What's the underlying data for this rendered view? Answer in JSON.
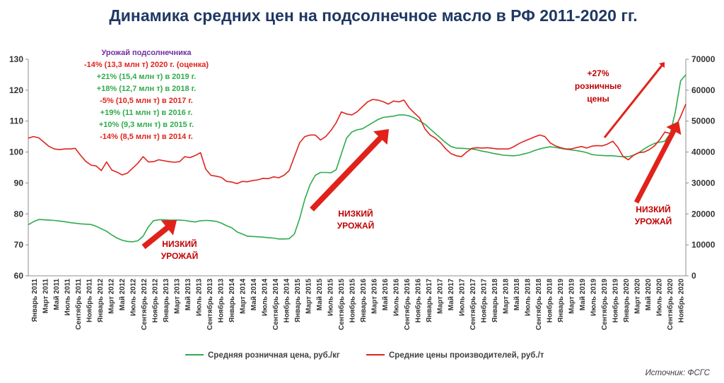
{
  "chart_data": {
    "type": "line",
    "title": "Динамика средних цен на подсолнечное масло в РФ 2011-2020 гг.",
    "source": "Источник: ФСГС",
    "y_left": {
      "min": 60,
      "max": 130,
      "ticks": [
        "130",
        "120",
        "110",
        "100",
        "90",
        "80",
        "70",
        "60"
      ]
    },
    "y_right": {
      "min": 0,
      "max": 70000,
      "ticks": [
        "70000",
        "60000",
        "50000",
        "40000",
        "30000",
        "20000",
        "10000",
        "0"
      ]
    },
    "x_labels": [
      "Январь 2011",
      "Март 2011",
      "Май 2011",
      "Июль 2011",
      "Сентябрь 2011",
      "Ноябрь 2011",
      "Январь 2012",
      "Март 2012",
      "Май 2012",
      "Июль 2012",
      "Сентябрь 2012",
      "Ноябрь 2012",
      "Январь 2013",
      "Март 2013",
      "Май 2013",
      "Июль 2013",
      "Сентябрь 2013",
      "Ноябрь 2013",
      "Январь 2014",
      "Март 2014",
      "Май 2014",
      "Июль 2014",
      "Сентябрь 2014",
      "Ноябрь 2014",
      "Январь 2015",
      "Март 2015",
      "Май 2015",
      "Июль 2015",
      "Сентябрь 2015",
      "Ноябрь 2015",
      "Январь 2016",
      "Март 2016",
      "Май 2016",
      "Июль 2016",
      "Сентябрь 2016",
      "Ноябрь 2016",
      "Январь 2017",
      "Март 2017",
      "Май 2017",
      "Июль 2017",
      "Сентябрь 2017",
      "Ноябрь 2017",
      "Январь 2018",
      "Март 2018",
      "Май 2018",
      "Июль 2018",
      "Сентябрь 2018",
      "Ноябрь 2018",
      "Январь 2019",
      "Март 2019",
      "Май 2019",
      "Июль 2019",
      "Сентябрь 2019",
      "Ноябрь 2019",
      "Январь 2020",
      "Март 2020",
      "Май 2020",
      "Июль 2020",
      "Сентябрь 2020",
      "Ноябрь 2020"
    ],
    "series": [
      {
        "name": "Средняя розничная цена, руб./кг",
        "axis": "left",
        "color": "#2eab4a",
        "values": [
          76.5,
          77.5,
          78.2,
          78.1,
          78.0,
          77.9,
          77.7,
          77.5,
          77.2,
          77.0,
          76.8,
          76.7,
          76.6,
          76.0,
          75.2,
          74.4,
          73.2,
          72.2,
          71.5,
          71.1,
          71.0,
          71.3,
          72.8,
          75.8,
          77.8,
          78.1,
          78.1,
          78.0,
          78.0,
          78.0,
          77.9,
          77.6,
          77.4,
          77.8,
          77.9,
          77.8,
          77.6,
          77.0,
          76.2,
          75.5,
          74.2,
          73.5,
          72.8,
          72.7,
          72.6,
          72.5,
          72.3,
          72.2,
          71.9,
          71.9,
          72.0,
          73.5,
          78.5,
          84.8,
          89.5,
          92.5,
          93.4,
          93.4,
          93.3,
          94.3,
          99.5,
          104.5,
          106.5,
          107.2,
          107.5,
          108.5,
          109.5,
          110.5,
          111.2,
          111.4,
          111.6,
          112.0,
          112.0,
          111.7,
          111.0,
          110.0,
          109.0,
          107.5,
          106.0,
          104.5,
          103.0,
          101.8,
          101.3,
          101.2,
          101.1,
          101.0,
          100.7,
          100.3,
          100.0,
          99.6,
          99.3,
          99.0,
          98.9,
          98.8,
          99.0,
          99.4,
          99.8,
          100.5,
          101.0,
          101.4,
          101.7,
          101.5,
          101.2,
          100.9,
          100.7,
          100.5,
          100.2,
          99.8,
          99.2,
          99.0,
          98.9,
          98.8,
          98.8,
          98.6,
          98.5,
          98.5,
          99.0,
          99.8,
          101.0,
          102.0,
          102.8,
          103.2,
          103.5,
          106.0,
          113.0,
          123.0,
          125.0
        ]
      },
      {
        "name": "Средние цены производителей, руб./т",
        "axis": "right",
        "color": "#e0221b",
        "values": [
          44500,
          45000,
          44600,
          43200,
          41800,
          41000,
          40800,
          41000,
          41000,
          41200,
          39000,
          37000,
          35800,
          35500,
          34000,
          36800,
          34200,
          33500,
          32600,
          33200,
          34800,
          36400,
          38500,
          36800,
          36900,
          37500,
          37200,
          36900,
          36700,
          36900,
          38500,
          38200,
          38900,
          39800,
          34500,
          32500,
          32200,
          31800,
          30500,
          30300,
          29800,
          30500,
          30400,
          30800,
          31000,
          31500,
          31400,
          32000,
          31700,
          32500,
          34000,
          38500,
          43000,
          45000,
          45500,
          45500,
          43900,
          45000,
          47000,
          49500,
          53000,
          52300,
          52000,
          53000,
          54600,
          56200,
          57000,
          56800,
          56300,
          55500,
          56500,
          56200,
          56800,
          54300,
          52600,
          51000,
          47500,
          45500,
          44500,
          43000,
          41000,
          39500,
          38800,
          38500,
          40000,
          41200,
          41400,
          41300,
          41400,
          41200,
          41000,
          41000,
          41000,
          41700,
          42700,
          43500,
          44200,
          44900,
          45500,
          45000,
          43000,
          42000,
          41400,
          41000,
          41000,
          41400,
          41800,
          41300,
          41900,
          42100,
          42000,
          42600,
          43500,
          41500,
          38500,
          37500,
          39000,
          39800,
          40000,
          40800,
          42000,
          44000,
          46500,
          46000,
          48000,
          51500,
          55500
        ]
      }
    ],
    "annotations": {
      "harvest_title": "Урожай подсолнечника",
      "harvest_lines": [
        {
          "text": "-14% (13,3 млн т) 2020 г. (оценка)",
          "color": "#e0221b"
        },
        {
          "text": "+21% (15,4 млн т) в 2019 г.",
          "color": "#2eab4a"
        },
        {
          "text": "+18% (12,7 млн т) в 2018 г.",
          "color": "#2eab4a"
        },
        {
          "text": "-5% (10,5 млн т) в 2017 г.",
          "color": "#e0221b"
        },
        {
          "text": "+19% (11 млн т) в 2016 г.",
          "color": "#2eab4a"
        },
        {
          "text": "+10% (9,3 млн т) в 2015 г.",
          "color": "#2eab4a"
        },
        {
          "text": "-14% (8,5 млн т) в 2014 г.",
          "color": "#e0221b"
        }
      ],
      "low_harvest_1": [
        "НИЗКИЙ",
        "УРОЖАЙ"
      ],
      "low_harvest_2": [
        "НИЗКИЙ",
        "УРОЖАЙ"
      ],
      "low_harvest_3": [
        "НИЗКИЙ",
        "УРОЖАЙ"
      ],
      "retail_increase": [
        "+27%",
        "розничные",
        "цены"
      ]
    },
    "colors": {
      "title": "#1f3864",
      "harvest_title": "#7030a0",
      "arrow": "#e0221b"
    },
    "grid": false,
    "legend_position": "bottom"
  }
}
